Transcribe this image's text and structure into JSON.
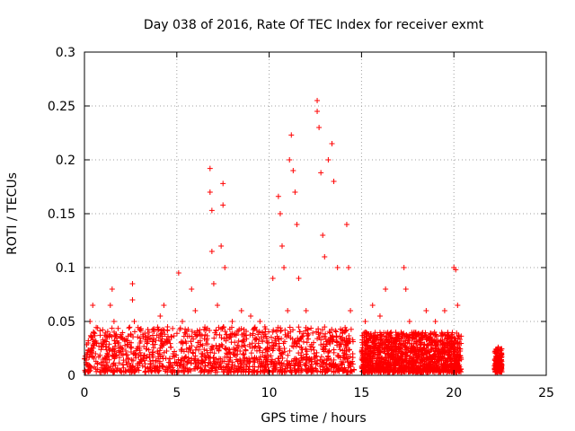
{
  "chart_data": {
    "type": "scatter",
    "title": "Day 038 of 2016, Rate Of TEC Index for receiver exmt",
    "xlabel": "GPS time / hours",
    "ylabel": "ROTI / TECUs",
    "xlim": [
      0,
      25
    ],
    "ylim": [
      0,
      0.3
    ],
    "grid": true,
    "x_ticks": [
      0,
      5,
      10,
      15,
      20,
      25
    ],
    "x_tick_labels": [
      "0",
      "5",
      "10",
      "15",
      "20",
      "25"
    ],
    "y_ticks": [
      0,
      0.05,
      0.1,
      0.15,
      0.2,
      0.25,
      0.3
    ],
    "y_tick_labels": [
      "0",
      "0.05",
      "0.1",
      "0.15",
      "0.2",
      "0.25",
      "0.3"
    ],
    "marker": "+",
    "color": "#ff0000",
    "series": [
      {
        "name": "ROTI",
        "points": [
          [
            0.1,
            0.01
          ],
          [
            0.2,
            0.03
          ],
          [
            0.3,
            0.05
          ],
          [
            0.45,
            0.065
          ],
          [
            0.5,
            0.04
          ],
          [
            0.6,
            0.02
          ],
          [
            1.0,
            0.03
          ],
          [
            1.4,
            0.065
          ],
          [
            1.5,
            0.08
          ],
          [
            1.6,
            0.05
          ],
          [
            2.0,
            0.02
          ],
          [
            2.6,
            0.085
          ],
          [
            2.6,
            0.07
          ],
          [
            2.7,
            0.05
          ],
          [
            3.0,
            0.03
          ],
          [
            3.5,
            0.04
          ],
          [
            4.1,
            0.055
          ],
          [
            4.3,
            0.065
          ],
          [
            4.5,
            0.045
          ],
          [
            4.8,
            0.02
          ],
          [
            5.1,
            0.095
          ],
          [
            5.3,
            0.05
          ],
          [
            5.8,
            0.08
          ],
          [
            6.0,
            0.06
          ],
          [
            6.2,
            0.04
          ],
          [
            6.8,
            0.192
          ],
          [
            6.8,
            0.17
          ],
          [
            6.9,
            0.153
          ],
          [
            6.9,
            0.115
          ],
          [
            7.0,
            0.085
          ],
          [
            7.2,
            0.065
          ],
          [
            7.4,
            0.12
          ],
          [
            7.5,
            0.178
          ],
          [
            7.5,
            0.158
          ],
          [
            7.6,
            0.1
          ],
          [
            8.0,
            0.05
          ],
          [
            8.5,
            0.06
          ],
          [
            9.0,
            0.055
          ],
          [
            9.5,
            0.05
          ],
          [
            10.2,
            0.09
          ],
          [
            10.5,
            0.166
          ],
          [
            10.6,
            0.15
          ],
          [
            10.7,
            0.12
          ],
          [
            10.8,
            0.1
          ],
          [
            11.0,
            0.06
          ],
          [
            11.1,
            0.2
          ],
          [
            11.2,
            0.223
          ],
          [
            11.3,
            0.19
          ],
          [
            11.4,
            0.17
          ],
          [
            11.5,
            0.14
          ],
          [
            11.6,
            0.09
          ],
          [
            12.0,
            0.06
          ],
          [
            12.6,
            0.255
          ],
          [
            12.6,
            0.245
          ],
          [
            12.7,
            0.23
          ],
          [
            12.8,
            0.188
          ],
          [
            12.9,
            0.13
          ],
          [
            13.0,
            0.11
          ],
          [
            13.2,
            0.2
          ],
          [
            13.4,
            0.215
          ],
          [
            13.5,
            0.18
          ],
          [
            13.7,
            0.1
          ],
          [
            14.2,
            0.14
          ],
          [
            14.3,
            0.1
          ],
          [
            14.4,
            0.06
          ],
          [
            15.2,
            0.05
          ],
          [
            15.6,
            0.065
          ],
          [
            16.0,
            0.055
          ],
          [
            16.3,
            0.08
          ],
          [
            16.6,
            0.04
          ],
          [
            17.3,
            0.1
          ],
          [
            17.4,
            0.08
          ],
          [
            17.6,
            0.05
          ],
          [
            18.0,
            0.03
          ],
          [
            18.5,
            0.06
          ],
          [
            19.0,
            0.05
          ],
          [
            19.5,
            0.06
          ],
          [
            20.0,
            0.1
          ],
          [
            20.1,
            0.098
          ],
          [
            20.2,
            0.065
          ],
          [
            22.4,
            0.026
          ],
          [
            22.4,
            0.015
          ],
          [
            22.5,
            0.007
          ]
        ]
      }
    ],
    "dense_bands": [
      {
        "x_range": [
          0.0,
          14.6
        ],
        "y_range": [
          0.003,
          0.045
        ],
        "density": "very high"
      },
      {
        "x_range": [
          15.0,
          20.4
        ],
        "y_range": [
          0.003,
          0.04
        ],
        "density": "very high"
      },
      {
        "x_range": [
          22.2,
          22.6
        ],
        "y_range": [
          0.003,
          0.025
        ],
        "density": "medium"
      }
    ]
  }
}
